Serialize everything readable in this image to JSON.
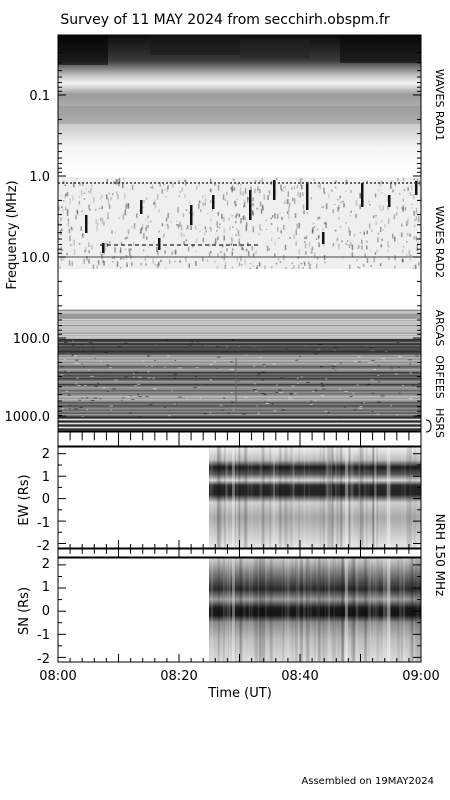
{
  "title": "Survey of 11 MAY 2024 from secchirh.obspm.fr",
  "footer": "Assembled on 19MAY2024",
  "chart_data": [
    {
      "type": "heatmap",
      "panel": "dynamic spectrum",
      "ylabel": "Frequency (MHz)",
      "yscale": "log",
      "ylim": [
        0.02,
        1300
      ],
      "yticks": [
        {
          "value": 0.1,
          "label": "0.1"
        },
        {
          "value": 1.0,
          "label": "1.0"
        },
        {
          "value": 10.0,
          "label": "10.0"
        },
        {
          "value": 100.0,
          "label": "100.0"
        },
        {
          "value": 1000.0,
          "label": "1000.0"
        }
      ],
      "instruments": [
        {
          "name": "WAVES RAD1",
          "range": [
            0.02,
            1.07
          ]
        },
        {
          "name": "WAVES RAD2",
          "range": [
            1.07,
            14.5
          ]
        },
        {
          "name": "ARCAS",
          "range": [
            30,
            100
          ]
        },
        {
          "name": "ORFEES",
          "range": [
            140,
            1000
          ]
        },
        {
          "name": "HSRS",
          "range": [
            1000,
            1300
          ]
        }
      ]
    },
    {
      "type": "heatmap",
      "panel": "NRH 150 MHz EW",
      "ylabel": "EW (Rs)",
      "ylim": [
        -2.2,
        2.3
      ],
      "yticks": [
        "-2",
        "-1",
        "0",
        "1",
        "2"
      ],
      "data_start": "08:26"
    },
    {
      "type": "heatmap",
      "panel": "NRH 150 MHz SN",
      "ylabel": "SN (Rs)",
      "ylim": [
        -2.2,
        2.3
      ],
      "yticks": [
        "-2",
        "-1",
        "0",
        "1",
        "2"
      ],
      "data_start": "08:26"
    }
  ],
  "xaxis": {
    "label": "Time (UT)",
    "ticks": [
      "08:00",
      "08:20",
      "08:40",
      "09:00"
    ]
  },
  "nrh_label": "NRH 150 MHz"
}
